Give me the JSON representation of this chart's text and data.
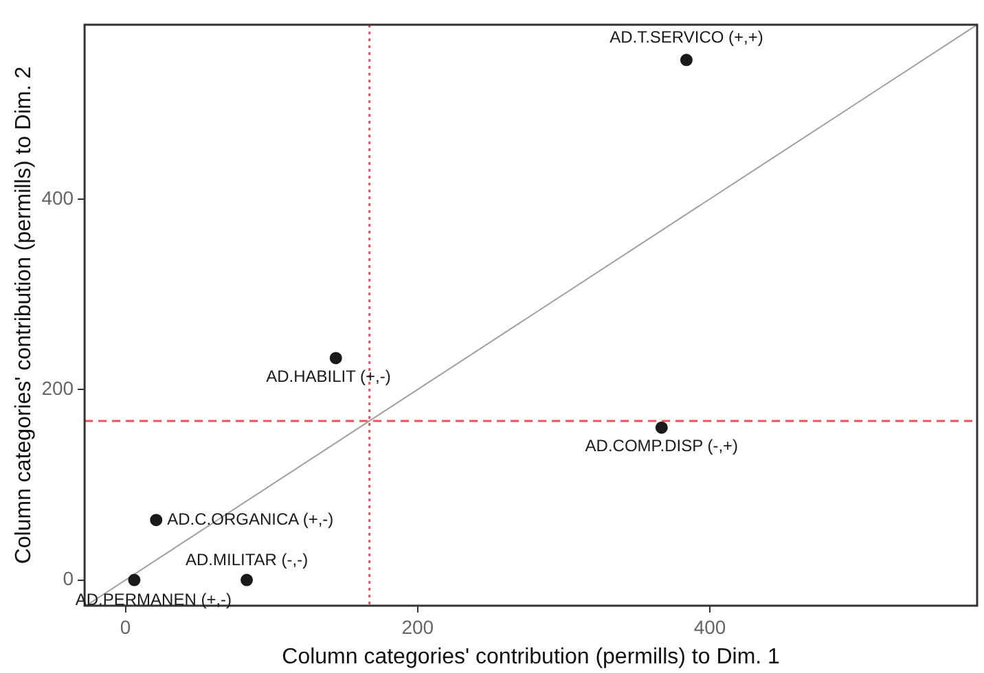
{
  "chart_data": {
    "type": "scatter",
    "xlabel": "Column categories' contribution (permills) to Dim. 1",
    "ylabel": "Column categories' contribution (permills) to Dim. 2",
    "xlim": [
      -28,
      583
    ],
    "ylim": [
      -27,
      583
    ],
    "xticks": [
      0,
      200,
      400
    ],
    "yticks": [
      0,
      200,
      400
    ],
    "grid": false,
    "legend": false,
    "marker": "circle",
    "series": [
      {
        "color": "#1a1a1a",
        "x": [
          384,
          144,
          367,
          21,
          83,
          6
        ],
        "values": [
          546,
          233,
          160,
          63,
          0,
          0
        ]
      },
      {
        "type": "line",
        "color": "#a0a0a0",
        "x": [
          -27,
          583
        ],
        "values": [
          -27,
          583
        ],
        "marker": "none"
      }
    ],
    "ref_lines": [
      {
        "axis": "x",
        "value": 167,
        "color": "#f0505a",
        "line_style": "dotted"
      },
      {
        "axis": "y",
        "value": 167,
        "color": "#f0505a",
        "line_style": "dashed"
      }
    ],
    "annotations": [
      {
        "text": "AD.T.SERVICO (+,+)",
        "x": 384,
        "y": 546
      },
      {
        "text": "AD.HABILIT (+,-)",
        "x": 144,
        "y": 233
      },
      {
        "text": "AD.COMP.DISP (-,+)",
        "x": 367,
        "y": 160
      },
      {
        "text": "AD.C.ORGANICA (+,-)",
        "x": 21,
        "y": 63
      },
      {
        "text": "AD.MILITAR (-,-)",
        "x": 83,
        "y": 0
      },
      {
        "text": "AD.PERMANEN (+,-)",
        "x": 6,
        "y": 0
      }
    ]
  }
}
